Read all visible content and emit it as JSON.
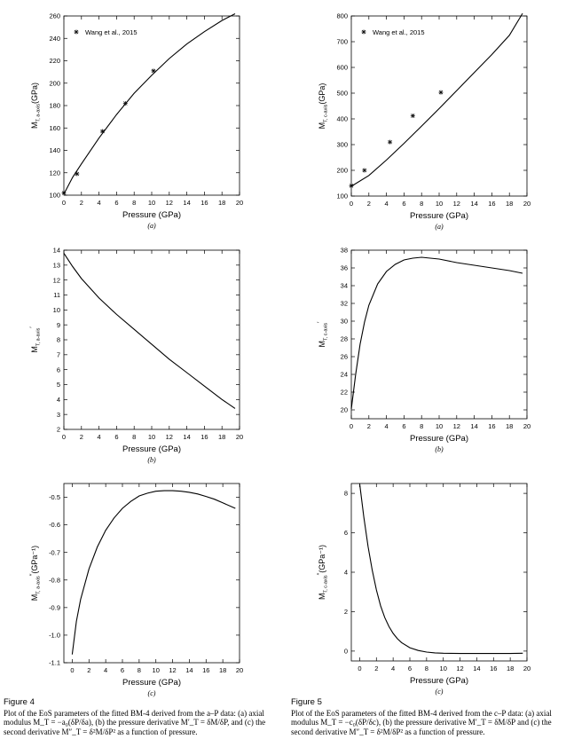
{
  "charts": [
    {
      "id": "4a",
      "type": "line",
      "sublabel": "(a)",
      "ylabel_main": "M",
      "ylabel_sub": "T, a-axis",
      "ylabel_tail": "(GPa)",
      "xlabel": "Pressure (GPa)",
      "xlim": [
        0,
        20
      ],
      "ylim": [
        100,
        260
      ],
      "xticks": [
        "0",
        "2",
        "4",
        "6",
        "8",
        "10",
        "12",
        "14",
        "16",
        "18",
        "20"
      ],
      "yticks": [
        "100",
        "120",
        "140",
        "160",
        "180",
        "200",
        "220",
        "240",
        "260"
      ],
      "legend": "Wang et al., 2015",
      "points": [
        [
          0,
          102
        ],
        [
          1.5,
          119
        ],
        [
          4.4,
          157
        ],
        [
          7,
          182
        ],
        [
          10.2,
          211
        ]
      ],
      "line": [
        [
          0,
          101
        ],
        [
          1,
          116
        ],
        [
          2,
          128
        ],
        [
          4,
          151
        ],
        [
          6,
          172
        ],
        [
          8,
          191
        ],
        [
          10,
          207
        ],
        [
          12,
          222
        ],
        [
          14,
          235
        ],
        [
          16,
          246
        ],
        [
          18,
          256
        ],
        [
          19.5,
          262
        ]
      ]
    },
    {
      "id": "5a",
      "type": "line",
      "sublabel": "(a)",
      "ylabel_main": "M",
      "ylabel_sub": "T, c-axis",
      "ylabel_tail": "(GPa)",
      "xlabel": "Pressure (GPa)",
      "xlim": [
        0,
        20
      ],
      "ylim": [
        100,
        800
      ],
      "xticks": [
        "0",
        "2",
        "4",
        "6",
        "8",
        "10",
        "12",
        "14",
        "16",
        "18",
        "20"
      ],
      "yticks": [
        "100",
        "200",
        "300",
        "400",
        "500",
        "600",
        "700",
        "800"
      ],
      "legend": "Wang et al., 2015",
      "points": [
        [
          0,
          140
        ],
        [
          1.5,
          200
        ],
        [
          4.4,
          310
        ],
        [
          7,
          412
        ],
        [
          10.2,
          503
        ]
      ],
      "line": [
        [
          0,
          138
        ],
        [
          2,
          180
        ],
        [
          4,
          240
        ],
        [
          6,
          305
        ],
        [
          8,
          372
        ],
        [
          10,
          440
        ],
        [
          12,
          510
        ],
        [
          14,
          580
        ],
        [
          16,
          650
        ],
        [
          18,
          725
        ],
        [
          19.5,
          810
        ]
      ]
    },
    {
      "id": "4b",
      "type": "line",
      "sublabel": "(b)",
      "ylabel_main": "M",
      "ylabel_sub": "T, a-axis",
      "ylabel_tail": "",
      "ylabel_prime": "′",
      "xlabel": "Pressure (GPa)",
      "xlim": [
        0,
        20
      ],
      "ylim": [
        2,
        14
      ],
      "xticks": [
        "0",
        "2",
        "4",
        "6",
        "8",
        "10",
        "12",
        "14",
        "16",
        "18",
        "20"
      ],
      "yticks": [
        "2",
        "3",
        "4",
        "5",
        "6",
        "7",
        "8",
        "9",
        "10",
        "11",
        "12",
        "13",
        "14"
      ],
      "line": [
        [
          0,
          13.8
        ],
        [
          1,
          12.9
        ],
        [
          2,
          12.1
        ],
        [
          4,
          10.8
        ],
        [
          6,
          9.7
        ],
        [
          8,
          8.7
        ],
        [
          10,
          7.7
        ],
        [
          12,
          6.7
        ],
        [
          14,
          5.8
        ],
        [
          16,
          4.9
        ],
        [
          18,
          4.0
        ],
        [
          19.5,
          3.4
        ]
      ]
    },
    {
      "id": "5b",
      "type": "line",
      "sublabel": "(b)",
      "ylabel_main": "M",
      "ylabel_sub": "T, c-axis",
      "ylabel_tail": "",
      "ylabel_prime": "′",
      "xlabel": "Pressure (GPa)",
      "xlim": [
        0,
        20
      ],
      "ylim": [
        19,
        38
      ],
      "xticks": [
        "0",
        "2",
        "4",
        "6",
        "8",
        "10",
        "12",
        "14",
        "16",
        "18",
        "20"
      ],
      "yticks": [
        "20",
        "22",
        "24",
        "26",
        "28",
        "30",
        "32",
        "34",
        "36",
        "38"
      ],
      "line": [
        [
          0,
          20.1
        ],
        [
          0.5,
          24
        ],
        [
          1,
          27.4
        ],
        [
          1.5,
          29.9
        ],
        [
          2,
          31.8
        ],
        [
          3,
          34.2
        ],
        [
          4,
          35.6
        ],
        [
          5,
          36.4
        ],
        [
          6,
          36.9
        ],
        [
          7,
          37.1
        ],
        [
          8,
          37.2
        ],
        [
          10,
          37.0
        ],
        [
          12,
          36.6
        ],
        [
          14,
          36.3
        ],
        [
          16,
          36.0
        ],
        [
          18,
          35.7
        ],
        [
          19.5,
          35.4
        ]
      ]
    },
    {
      "id": "4c",
      "type": "line",
      "sublabel": "(c)",
      "ylabel_main": "M",
      "ylabel_sub": "T, a-axis",
      "ylabel_tail": "(GPa⁻¹)",
      "ylabel_prime": "′′",
      "xlabel": "Pressure (GPa)",
      "xlim": [
        -1,
        20
      ],
      "ylim": [
        -1.1,
        -0.45
      ],
      "xticks": [
        "0",
        "2",
        "4",
        "6",
        "8",
        "10",
        "12",
        "14",
        "16",
        "18",
        "20"
      ],
      "yticks": [
        "-1.1",
        "-1.0",
        "-0.9",
        "-0.8",
        "-0.7",
        "-0.6",
        "-0.5"
      ],
      "line": [
        [
          0,
          -1.07
        ],
        [
          0.5,
          -0.95
        ],
        [
          1,
          -0.87
        ],
        [
          2,
          -0.76
        ],
        [
          3,
          -0.68
        ],
        [
          4,
          -0.62
        ],
        [
          5,
          -0.575
        ],
        [
          6,
          -0.54
        ],
        [
          7,
          -0.515
        ],
        [
          8,
          -0.495
        ],
        [
          9,
          -0.485
        ],
        [
          10,
          -0.478
        ],
        [
          11,
          -0.476
        ],
        [
          12,
          -0.476
        ],
        [
          13,
          -0.478
        ],
        [
          14,
          -0.482
        ],
        [
          15,
          -0.488
        ],
        [
          16,
          -0.497
        ],
        [
          17,
          -0.507
        ],
        [
          18,
          -0.52
        ],
        [
          19.5,
          -0.54
        ]
      ]
    },
    {
      "id": "5c",
      "type": "line",
      "sublabel": "(c)",
      "ylabel_main": "M",
      "ylabel_sub": "T, c-axis",
      "ylabel_tail": "(GPa⁻¹)",
      "ylabel_prime": "′′",
      "xlabel": "Pressure (GPa)",
      "xlim": [
        -1,
        20
      ],
      "ylim": [
        -0.5,
        8.5
      ],
      "xticks": [
        "0",
        "2",
        "4",
        "6",
        "8",
        "10",
        "12",
        "14",
        "16",
        "18",
        "20"
      ],
      "yticks": [
        "0",
        "2",
        "4",
        "6",
        "8"
      ],
      "line": [
        [
          0,
          8.5
        ],
        [
          0.5,
          6.8
        ],
        [
          1,
          5.3
        ],
        [
          1.5,
          4.1
        ],
        [
          2,
          3.1
        ],
        [
          2.5,
          2.3
        ],
        [
          3,
          1.7
        ],
        [
          3.5,
          1.25
        ],
        [
          4,
          0.9
        ],
        [
          4.5,
          0.63
        ],
        [
          5,
          0.43
        ],
        [
          6,
          0.17
        ],
        [
          7,
          0.03
        ],
        [
          8,
          -0.05
        ],
        [
          9,
          -0.09
        ],
        [
          10,
          -0.11
        ],
        [
          12,
          -0.12
        ],
        [
          14,
          -0.12
        ],
        [
          16,
          -0.12
        ],
        [
          18,
          -0.12
        ],
        [
          19.5,
          -0.11
        ]
      ]
    }
  ],
  "captions": [
    {
      "fig": "Figure 4",
      "text": "Plot of the EoS parameters of the fitted BM-4 derived from the a–P data: (a) axial modulus M_T = −a₀(δP/δa), (b) the pressure derivative M′_T = δM/δP, and (c) the second derivative M″_T = δ²M/δP² as a function of pressure."
    },
    {
      "fig": "Figure 5",
      "text": "Plot of the EoS parameters of the fitted BM-4 derived from the c–P data: (a) axial modulus M_T = −c₀(δP/δc), (b) the pressure derivative M′_T = δM/δP and (c) the second derivative M″_T = δ²M/δP² as a function of pressure."
    }
  ]
}
